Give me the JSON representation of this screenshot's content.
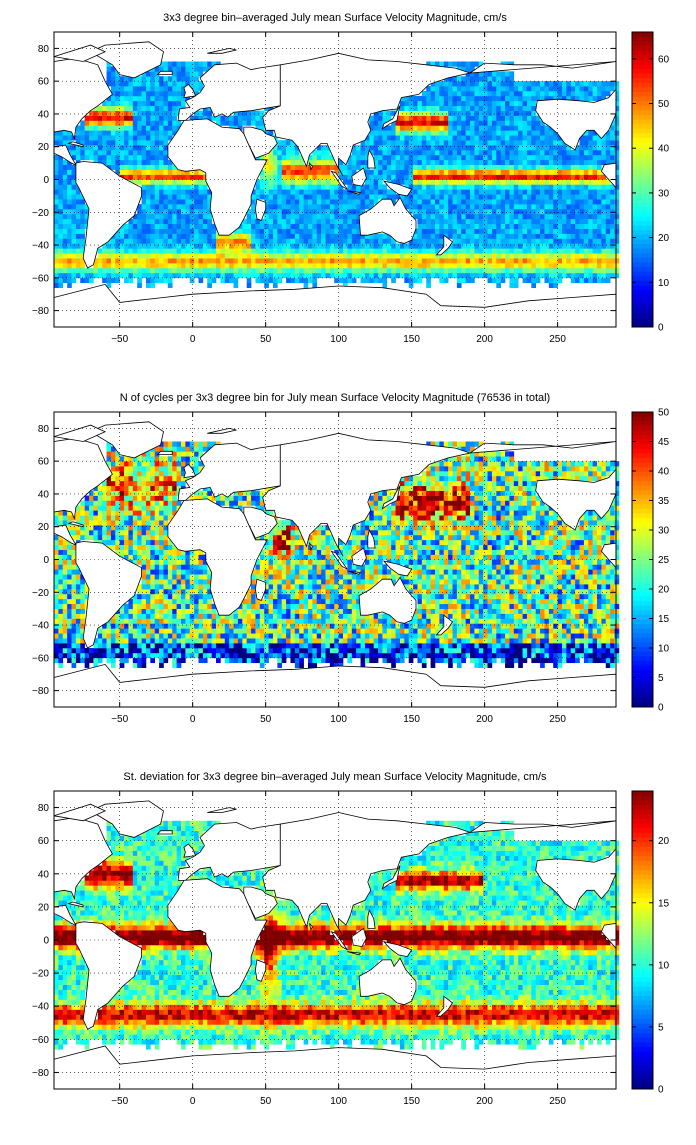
{
  "chart_data": [
    {
      "type": "heatmap",
      "title": "3x3 degree bin–averaged July mean Surface Velocity Magnitude, cm/s",
      "x_ticks": [
        -50,
        0,
        50,
        100,
        150,
        200,
        250
      ],
      "y_ticks": [
        80,
        60,
        40,
        20,
        0,
        -20,
        -40,
        -60,
        -80
      ],
      "xlim": [
        -95,
        290
      ],
      "ylim": [
        -90,
        90
      ],
      "grid": true,
      "colormap": "jet",
      "colorbar_ticks": [
        60,
        50,
        40,
        30,
        20,
        10,
        0
      ],
      "colorbar_range": [
        0,
        66
      ],
      "field": "speed",
      "colors": {
        "land_fill": "#ffffff",
        "coast": "#000000"
      }
    },
    {
      "type": "heatmap",
      "title": "N of cycles per 3x3 degree bin for July mean Surface Velocity Magnitude (76536 in total)",
      "x_ticks": [
        -50,
        0,
        50,
        100,
        150,
        200,
        250
      ],
      "y_ticks": [
        80,
        60,
        40,
        20,
        0,
        -20,
        -40,
        -60,
        -80
      ],
      "xlim": [
        -95,
        290
      ],
      "ylim": [
        -90,
        90
      ],
      "grid": true,
      "colormap": "jet",
      "colorbar_ticks": [
        50,
        45,
        40,
        35,
        30,
        25,
        20,
        15,
        10,
        5,
        0
      ],
      "colorbar_range": [
        0,
        50
      ],
      "field": "count",
      "colors": {
        "land_fill": "#ffffff",
        "coast": "#000000"
      }
    },
    {
      "type": "heatmap",
      "title": "St. deviation for 3x3 degree bin–averaged July mean Surface Velocity Magnitude, cm/s",
      "x_ticks": [
        -50,
        0,
        50,
        100,
        150,
        200,
        250
      ],
      "y_ticks": [
        80,
        60,
        40,
        20,
        0,
        -20,
        -40,
        -60,
        -80
      ],
      "xlim": [
        -95,
        290
      ],
      "ylim": [
        -90,
        90
      ],
      "grid": true,
      "colormap": "jet",
      "colorbar_ticks": [
        20,
        15,
        10,
        5,
        0
      ],
      "colorbar_range": [
        0,
        24
      ],
      "field": "std",
      "colors": {
        "land_fill": "#ffffff",
        "coast": "#000000"
      }
    }
  ]
}
